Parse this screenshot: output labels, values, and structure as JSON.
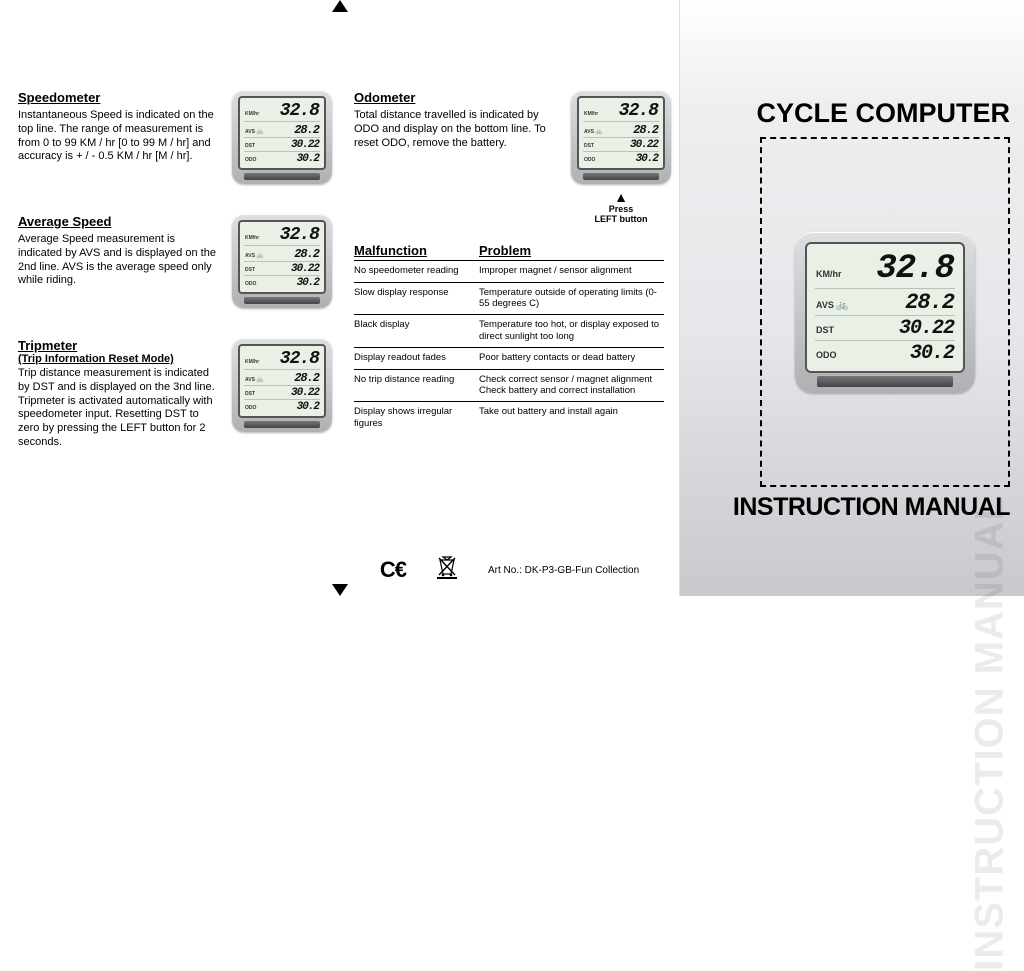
{
  "fold_color": "#000000",
  "left": {
    "speedometer": {
      "heading": "Speedometer",
      "body": "Instantaneous Speed is indicated on the top line. The range of measurement is from 0 to 99 KM / hr [0 to 99 M / hr] and accuracy is + / - 0.5 KM / hr [M / hr]."
    },
    "average_speed": {
      "heading": "Average Speed",
      "body": "Average Speed measurement is indicated by AVS and is displayed on the 2nd line. AVS is the average speed only while riding."
    },
    "tripmeter": {
      "heading": "Tripmeter",
      "subheading": "(Trip Information Reset Mode)",
      "body": "Trip distance measurement is indicated by DST and is displayed on the 3nd line. Tripmeter is activated automatically with speedometer input. Resetting DST to zero by pressing the LEFT button for 2 seconds."
    }
  },
  "mid": {
    "odometer": {
      "heading": "Odometer",
      "body": "Total distance travelled is indicated by ODO and display on the bottom line. To reset ODO, remove the battery."
    },
    "press_hint_l1": "Press",
    "press_hint_l2": "LEFT button",
    "table": {
      "col1": "Malfunction",
      "col2": "Problem",
      "rows": [
        {
          "m": "No speedometer reading",
          "p": "Improper magnet / sensor alignment"
        },
        {
          "m": "Slow display response",
          "p": "Temperature outside of operating limits (0-55 degrees C)"
        },
        {
          "m": "Black display",
          "p": "Temperature too hot, or display exposed to direct sunlight too long"
        },
        {
          "m": "Display readout fades",
          "p": "Poor battery contacts or dead battery"
        },
        {
          "m": "No trip distance reading",
          "p": "Check correct sensor / magnet alignment\nCheck battery and correct installation"
        },
        {
          "m": "Display shows irregular figures",
          "p": "Take out battery and install again"
        }
      ]
    },
    "ce_label": "C€",
    "art_no": "Art No.: DK-P3-GB-Fun Collection"
  },
  "cover": {
    "title": "CYCLE COMPUTER",
    "subtitle": "INSTRUCTION MANUAL",
    "ghost": "INSTRUCTION   MANUAL"
  },
  "device": {
    "labels": {
      "speed": "KM/hr",
      "avs": "AVS",
      "dst": "DST",
      "odo": "ODO"
    },
    "values": {
      "speed": "32.8",
      "avs": "28.2",
      "dst": "30.22",
      "odo": "30.2"
    },
    "colors": {
      "body_top": "#dedfe1",
      "body_bottom": "#aeb0b3",
      "screen_bg": "#e9f0e6",
      "screen_border": "#555555",
      "digit_color": "#111111"
    }
  }
}
